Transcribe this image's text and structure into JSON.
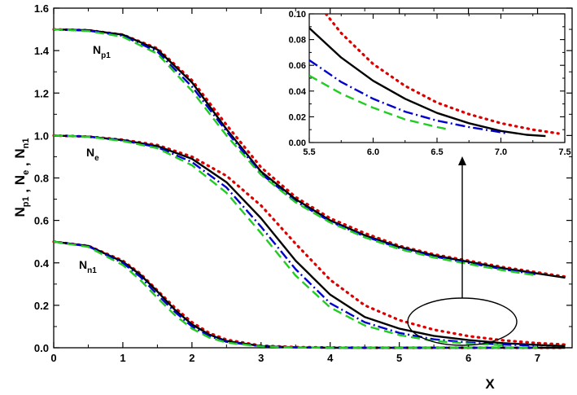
{
  "chart_data": [
    {
      "type": "line",
      "xlabel": "X",
      "ylabel": {
        "parts": [
          [
            "N",
            "p1"
          ],
          [
            "N",
            "e"
          ],
          [
            "N",
            "n1"
          ]
        ],
        "separator": " , "
      },
      "xlim": [
        0,
        7.5
      ],
      "ylim": [
        0,
        1.6
      ],
      "xticks": [
        "0",
        "1",
        "2",
        "3",
        "4",
        "5",
        "6",
        "7"
      ],
      "yticks": [
        "0.0",
        "0.2",
        "0.4",
        "0.6",
        "0.8",
        "1.0",
        "1.2",
        "1.4",
        "1.6"
      ],
      "curve_labels": [
        {
          "main": "N",
          "sub": "p1"
        },
        {
          "main": "N",
          "sub": "e"
        },
        {
          "main": "N",
          "sub": "n1"
        }
      ],
      "annotations": [
        "ellipse marking the zoomed region near x = 5.5 to 7.5",
        "arrow pointing up to inset"
      ],
      "series_styles": [
        {
          "style": "dotted",
          "color": "#dd0000"
        },
        {
          "style": "solid",
          "color": "#000000"
        },
        {
          "style": "dash-dot",
          "color": "#0000cc"
        },
        {
          "style": "dashed",
          "color": "#22cc22"
        }
      ],
      "groups": [
        {
          "label": "N_p1",
          "x": [
            0,
            0.5,
            1,
            1.5,
            2,
            2.5,
            3,
            3.5,
            4,
            4.5,
            5,
            5.5,
            6,
            6.5,
            7,
            7.4
          ],
          "series": [
            {
              "style": "dotted",
              "color": "#dd0000",
              "values": [
                1.5,
                1.496,
                1.475,
                1.41,
                1.26,
                1.05,
                0.85,
                0.71,
                0.61,
                0.54,
                0.48,
                0.44,
                0.41,
                0.38,
                0.355,
                0.335
              ]
            },
            {
              "style": "solid",
              "color": "#000000",
              "values": [
                1.5,
                1.496,
                1.475,
                1.405,
                1.25,
                1.03,
                0.83,
                0.7,
                0.6,
                0.53,
                0.475,
                0.435,
                0.405,
                0.375,
                0.35,
                0.33
              ]
            },
            {
              "style": "dash-dot",
              "color": "#0000cc",
              "values": [
                1.5,
                1.494,
                1.47,
                1.395,
                1.23,
                1.02,
                0.82,
                0.69,
                0.595,
                0.525,
                0.47,
                0.43,
                0.4,
                0.37,
                0.345
              ]
            },
            {
              "style": "dashed",
              "color": "#22cc22",
              "values": [
                1.5,
                1.492,
                1.465,
                1.385,
                1.21,
                1.0,
                0.815,
                0.685,
                0.59,
                0.52,
                0.465,
                0.425,
                0.395,
                0.365,
                0.34
              ]
            }
          ]
        },
        {
          "label": "N_e",
          "x": [
            0,
            0.5,
            1,
            1.5,
            2,
            2.5,
            3,
            3.5,
            4,
            4.5,
            5,
            5.5,
            6,
            6.5,
            7,
            7.4
          ],
          "series": [
            {
              "style": "dotted",
              "color": "#dd0000",
              "values": [
                1.0,
                0.995,
                0.98,
                0.955,
                0.9,
                0.81,
                0.67,
                0.49,
                0.32,
                0.2,
                0.13,
                0.085,
                0.055,
                0.035,
                0.022,
                0.015
              ]
            },
            {
              "style": "solid",
              "color": "#000000",
              "values": [
                1.0,
                0.995,
                0.978,
                0.95,
                0.89,
                0.78,
                0.61,
                0.41,
                0.25,
                0.145,
                0.09,
                0.056,
                0.036,
                0.022,
                0.013,
                0.008
              ]
            },
            {
              "style": "dash-dot",
              "color": "#0000cc",
              "values": [
                1.0,
                0.995,
                0.976,
                0.945,
                0.875,
                0.755,
                0.57,
                0.37,
                0.21,
                0.12,
                0.07,
                0.04,
                0.025,
                0.015,
                0.01
              ]
            },
            {
              "style": "dashed",
              "color": "#22cc22",
              "values": [
                1.0,
                0.994,
                0.974,
                0.94,
                0.86,
                0.73,
                0.54,
                0.34,
                0.19,
                0.105,
                0.06,
                0.032,
                0.02,
                0.012
              ]
            }
          ]
        },
        {
          "label": "N_n1",
          "x": [
            0,
            0.5,
            1,
            1.25,
            1.5,
            1.75,
            2,
            2.25,
            2.5,
            3,
            3.5,
            4,
            4.5,
            5,
            6,
            7,
            7.4
          ],
          "series": [
            {
              "style": "dotted",
              "color": "#dd0000",
              "values": [
                0.5,
                0.48,
                0.41,
                0.35,
                0.27,
                0.19,
                0.12,
                0.07,
                0.038,
                0.01,
                0.003,
                0.001,
                0.0,
                0.0,
                0.0,
                0.0,
                0.0
              ]
            },
            {
              "style": "solid",
              "color": "#000000",
              "values": [
                0.5,
                0.48,
                0.405,
                0.345,
                0.265,
                0.18,
                0.11,
                0.062,
                0.032,
                0.008,
                0.002,
                0.0,
                0.0,
                0.0,
                0.0,
                0.0,
                0.0
              ]
            },
            {
              "style": "dash-dot",
              "color": "#0000cc",
              "values": [
                0.5,
                0.478,
                0.4,
                0.335,
                0.25,
                0.17,
                0.1,
                0.055,
                0.028,
                0.007,
                0.002,
                0.0,
                0.0,
                0.0,
                0.0,
                0.0
              ]
            },
            {
              "style": "dashed",
              "color": "#22cc22",
              "values": [
                0.5,
                0.475,
                0.39,
                0.32,
                0.235,
                0.155,
                0.09,
                0.048,
                0.024,
                0.006,
                0.001,
                0.0,
                0.0,
                0.0,
                0.0,
                0.0
              ]
            }
          ]
        }
      ]
    },
    {
      "type": "line",
      "xlim": [
        5.5,
        7.5
      ],
      "ylim": [
        0,
        0.1
      ],
      "xticks": [
        "5.5",
        "6.0",
        "6.5",
        "7.0",
        "7.5"
      ],
      "yticks": [
        "0.00",
        "0.02",
        "0.04",
        "0.06",
        "0.08",
        "0.10"
      ],
      "series": [
        {
          "style": "dotted",
          "color": "#dd0000",
          "x": [
            5.63,
            5.75,
            6.0,
            6.25,
            6.5,
            6.75,
            7.0,
            7.25,
            7.45
          ],
          "values": [
            0.1,
            0.085,
            0.061,
            0.044,
            0.031,
            0.022,
            0.015,
            0.01,
            0.007
          ]
        },
        {
          "style": "solid",
          "color": "#000000",
          "x": [
            5.5,
            5.75,
            6.0,
            6.25,
            6.5,
            6.75,
            7.0,
            7.2,
            7.35
          ],
          "values": [
            0.089,
            0.066,
            0.048,
            0.034,
            0.023,
            0.015,
            0.009,
            0.006,
            0.005
          ]
        },
        {
          "style": "dash-dot",
          "color": "#0000cc",
          "x": [
            5.5,
            5.75,
            6.0,
            6.25,
            6.5,
            6.75,
            7.0,
            7.05
          ],
          "values": [
            0.064,
            0.047,
            0.034,
            0.024,
            0.017,
            0.012,
            0.008,
            0.007
          ]
        },
        {
          "style": "dashed",
          "color": "#22cc22",
          "x": [
            5.5,
            5.75,
            6.0,
            6.25,
            6.5,
            6.6
          ],
          "values": [
            0.052,
            0.038,
            0.027,
            0.018,
            0.012,
            0.01
          ]
        }
      ]
    }
  ]
}
